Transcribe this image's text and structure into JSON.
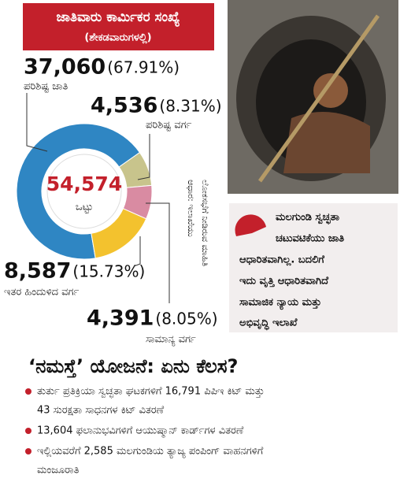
{
  "chart_data": {
    "type": "donut",
    "title": "ಜಾತಿವಾರು ಕಾರ್ಮಿಕರ ಸಂಖ್ಯೆ",
    "subtitle": "(ಶೇಕಡವಾರುಗಳಲ್ಲಿ)",
    "categories": [
      "ಪರಿಶಿಷ್ಟ ಜಾತಿ",
      "ಪರಿಶಿಷ್ಟ ವರ್ಗ",
      "ಸಾಮಾನ್ಯ ವರ್ಗ",
      "ಇತರ ಹಿಂದುಳಿದ ವರ್ಗ"
    ],
    "values": [
      37060,
      4536,
      4391,
      8587
    ],
    "value_labels": [
      "37,060",
      "4,536",
      "4,391",
      "8,587"
    ],
    "percent_labels": [
      "(67.91%)",
      "(8.31%)",
      "(8.05%)",
      "(15.73%)"
    ],
    "colors": [
      "#2f86c3",
      "#c8c48c",
      "#d98ba2",
      "#f3c22e"
    ],
    "total": 54574,
    "total_label": "54,574",
    "total_caption": "ಒಟ್ಟು",
    "source": [
      "ಆಧಾರ: ಇಲಾಖೆಯು",
      "ಲೋಕಸಭೆಗೆ ನೀಡಿರುವ ಮಾಹಿತಿ"
    ]
  },
  "quote": {
    "lines": [
      "ಮಲಗುಂಡಿ ಸ್ವಚ್ಛತಾ",
      "ಚಟುವಟಿಕೆಯು ಜಾತಿ",
      "ಆಧಾರಿತವಾಗಿಲ್ಲ. ಬದಲಿಗೆ",
      "ಇದು ವೃತ್ತಿ ಆಧಾರಿತವಾಗಿದೆ"
    ],
    "attribution": [
      "ಸಾಮಾಜಿಕ ನ್ಯಾಯ ಮತ್ತು",
      "ಅಭಿವೃದ್ಧಿ ಇಲಾಖೆ"
    ]
  },
  "scheme": {
    "heading": "‘ನಮಸ್ತೆ’ ಯೋಜನೆ: ಏನು ಕೆಲಸ?",
    "bullets": [
      [
        "ತುರ್ತು ಪ್ರತಿಕ್ರಿಯಾ ಸ್ವಚ್ಛತಾ ಘಟಕಗಳಿಗೆ 16,791 ಪಿಪಿಇ ಕಿಟ್ ಮತ್ತು",
        "43 ಸುರಕ್ಷತಾ ಸಾಧನಗಳ ಕಿಟ್ ವಿತರಣೆ"
      ],
      [
        "13,604 ಫಲಾನುಭವಿಗಳಿಗೆ ಆಯುಷ್ಮಾನ್ ಕಾರ್ಡ್‌ಗಳ ವಿತರಣೆ"
      ],
      [
        "ಇಲ್ಲಿಯವರೆಗೆ 2,585 ಮಲಗುಂಡಿಯ ತ್ಯಾಜ್ಯ ಪಂಪಿಂಗ್ ವಾಹನಗಳಿಗೆ",
        "ಮಂಜೂರಾತಿ"
      ]
    ]
  }
}
